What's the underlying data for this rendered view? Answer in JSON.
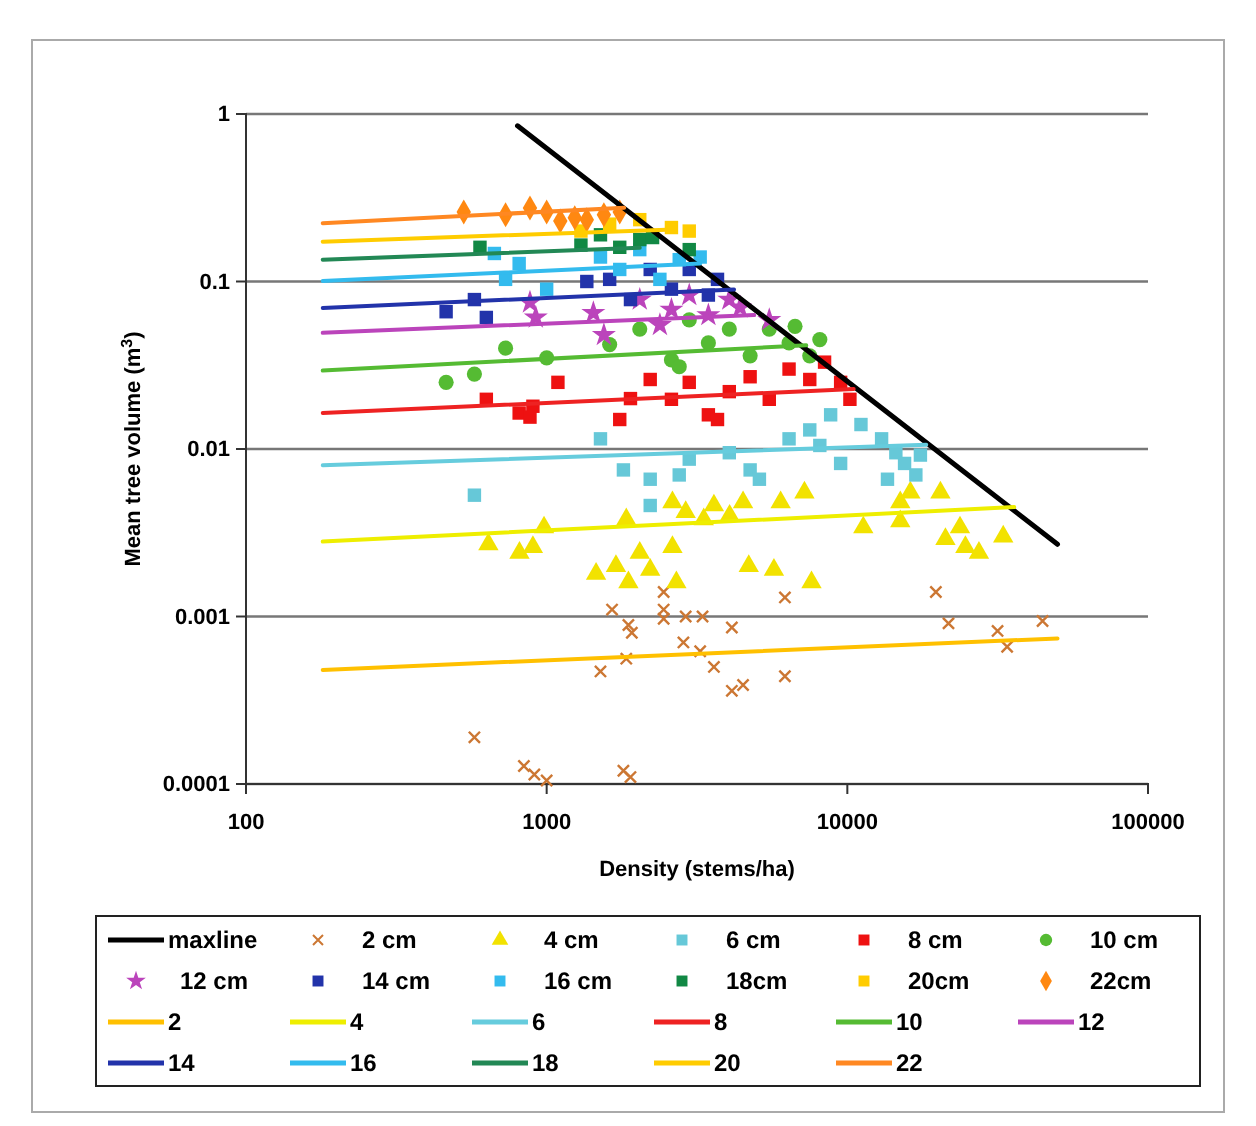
{
  "chart_data": {
    "type": "scatter",
    "xlabel": "Density (stems/ha)",
    "ylabel": "Mean tree volume (m$^{3}$)",
    "log": "xy",
    "xlim": [
      100,
      100000
    ],
    "xticks": [
      100,
      1000,
      10000,
      100000
    ],
    "ylim": [
      0.0001,
      1
    ],
    "yticks": [
      0.0001,
      0.001,
      0.01,
      0.1,
      1
    ],
    "grid": "y",
    "legend": "bottom",
    "series": [
      {
        "name": "maxline",
        "type": "line",
        "color": "#000000",
        "x": [
          800,
          50000
        ],
        "values": [
          0.85,
          0.0027
        ]
      },
      {
        "name": "2 cm",
        "marker": "cross",
        "color": "#cc7733",
        "x": [
          575,
          840,
          910,
          1000,
          1800,
          1900,
          1510,
          1840,
          1650,
          1870,
          1920,
          2450,
          2450,
          2450,
          2900,
          3300,
          2850,
          3240,
          3600,
          4130,
          4130,
          4500,
          6200,
          6200,
          19700,
          21700,
          31600,
          34000,
          44600
        ],
        "values": [
          0.00019,
          0.000128,
          0.000114,
          0.000105,
          0.00012,
          0.00011,
          0.00047,
          0.00056,
          0.0011,
          0.00089,
          0.0008,
          0.0014,
          0.0011,
          0.00097,
          0.001,
          0.001,
          0.0007,
          0.00062,
          0.0005,
          0.00086,
          0.00036,
          0.00039,
          0.0013,
          0.00044,
          0.0014,
          0.00091,
          0.00082,
          0.00066,
          0.00094
        ]
      },
      {
        "name": "4 cm",
        "marker": "triangle",
        "color": "#f2e200",
        "x": [
          640,
          812,
          900,
          980,
          1460,
          1700,
          1840,
          1870,
          2040,
          2210,
          2620,
          2620,
          2700,
          2900,
          3330,
          3600,
          4060,
          4500,
          4700,
          5700,
          6000,
          7200,
          7600,
          11300,
          15000,
          15000,
          16200,
          20400,
          21200,
          23700,
          24700,
          27400,
          33000
        ],
        "values": [
          0.0027,
          0.0024,
          0.0026,
          0.0034,
          0.0018,
          0.002,
          0.0038,
          0.0016,
          0.0024,
          0.0019,
          0.0048,
          0.0026,
          0.0016,
          0.0042,
          0.0038,
          0.0046,
          0.004,
          0.0048,
          0.002,
          0.0019,
          0.0048,
          0.0055,
          0.0016,
          0.0034,
          0.0048,
          0.0037,
          0.0055,
          0.0055,
          0.0029,
          0.0034,
          0.0026,
          0.0024,
          0.003
        ]
      },
      {
        "name": "6 cm",
        "marker": "square",
        "color": "#66c8d8",
        "x": [
          575,
          2210,
          1510,
          1800,
          2210,
          2760,
          2980,
          4050,
          4750,
          5100,
          6400,
          7500,
          8800,
          11100,
          13000,
          14500,
          15500,
          16900,
          17500,
          13600,
          9500,
          8100
        ],
        "values": [
          0.0053,
          0.0046,
          0.0115,
          0.0075,
          0.0066,
          0.007,
          0.0087,
          0.0095,
          0.0075,
          0.0066,
          0.0115,
          0.013,
          0.016,
          0.014,
          0.0115,
          0.0095,
          0.0082,
          0.007,
          0.0092,
          0.0066,
          0.0082,
          0.0105
        ]
      },
      {
        "name": "8 cm",
        "marker": "square",
        "color": "#ee1111",
        "x": [
          630,
          810,
          900,
          1090,
          880,
          1750,
          1900,
          2210,
          2600,
          2980,
          3450,
          4050,
          4750,
          5500,
          6400,
          7500,
          8400,
          9500,
          10200,
          3700
        ],
        "values": [
          0.0198,
          0.0164,
          0.018,
          0.025,
          0.0155,
          0.015,
          0.02,
          0.026,
          0.0198,
          0.025,
          0.016,
          0.022,
          0.027,
          0.0198,
          0.03,
          0.026,
          0.033,
          0.025,
          0.0198,
          0.015
        ]
      },
      {
        "name": "10 cm",
        "marker": "circle",
        "color": "#55bb33",
        "x": [
          463,
          575,
          730,
          1000,
          1620,
          2040,
          2600,
          2980,
          3450,
          4050,
          4750,
          5500,
          6400,
          6700,
          7500,
          8100,
          2760
        ],
        "values": [
          0.025,
          0.028,
          0.04,
          0.035,
          0.042,
          0.052,
          0.034,
          0.059,
          0.043,
          0.052,
          0.036,
          0.052,
          0.043,
          0.054,
          0.036,
          0.045,
          0.031
        ]
      },
      {
        "name": "12 cm",
        "marker": "star",
        "color": "#bb44bb",
        "x": [
          880,
          920,
          1430,
          1550,
          2040,
          2600,
          2980,
          3450,
          4050,
          4400,
          5500,
          2380
        ],
        "values": [
          0.075,
          0.061,
          0.065,
          0.048,
          0.078,
          0.068,
          0.083,
          0.063,
          0.078,
          0.07,
          0.059,
          0.055
        ]
      },
      {
        "name": "14 cm",
        "marker": "square",
        "color": "#2233aa",
        "x": [
          463,
          575,
          630,
          1360,
          1620,
          1900,
          2210,
          2600,
          2980,
          3450,
          3700
        ],
        "values": [
          0.066,
          0.078,
          0.061,
          0.1,
          0.103,
          0.078,
          0.118,
          0.09,
          0.118,
          0.083,
          0.103
        ]
      },
      {
        "name": "16 cm",
        "marker": "square",
        "color": "#33bbee",
        "x": [
          670,
          810,
          730,
          1000,
          1510,
          1750,
          2040,
          2380,
          2760,
          3240
        ],
        "values": [
          0.147,
          0.128,
          0.103,
          0.09,
          0.14,
          0.118,
          0.155,
          0.103,
          0.135,
          0.14
        ]
      },
      {
        "name": "18cm",
        "marker": "square",
        "color": "#118844",
        "x": [
          600,
          1300,
          1510,
          1750,
          2040,
          2250,
          2980
        ],
        "values": [
          0.16,
          0.165,
          0.19,
          0.16,
          0.178,
          0.183,
          0.155
        ]
      },
      {
        "name": "20cm",
        "marker": "square",
        "color": "#ffcc00",
        "x": [
          1300,
          1620,
          2040,
          2600,
          2980
        ],
        "values": [
          0.2,
          0.22,
          0.234,
          0.21,
          0.2
        ]
      },
      {
        "name": "22cm",
        "marker": "diamond",
        "color": "#ff8811",
        "x": [
          530,
          730,
          880,
          1000,
          1110,
          1240,
          1360,
          1550,
          1750
        ],
        "values": [
          0.26,
          0.25,
          0.275,
          0.26,
          0.23,
          0.24,
          0.234,
          0.25,
          0.26
        ]
      },
      {
        "name": "2",
        "type": "line",
        "color": "#ffc000",
        "x": [
          180,
          50000
        ],
        "values": [
          0.00048,
          0.00074
        ]
      },
      {
        "name": "4",
        "type": "line",
        "color": "#eeee00",
        "x": [
          180,
          35900
        ],
        "values": [
          0.0028,
          0.0045
        ]
      },
      {
        "name": "6",
        "type": "line",
        "color": "#66ccdd",
        "x": [
          180,
          18300
        ],
        "values": [
          0.008,
          0.0106
        ]
      },
      {
        "name": "8",
        "type": "line",
        "color": "#ee2222",
        "x": [
          180,
          10500
        ],
        "values": [
          0.0164,
          0.0228
        ]
      },
      {
        "name": "10",
        "type": "line",
        "color": "#55bb33",
        "x": [
          180,
          7300
        ],
        "values": [
          0.0294,
          0.0416
        ]
      },
      {
        "name": "12",
        "type": "line",
        "color": "#bb44bb",
        "x": [
          180,
          4900
        ],
        "values": [
          0.0494,
          0.063
        ]
      },
      {
        "name": "14",
        "type": "line",
        "color": "#2233aa",
        "x": [
          180,
          4200
        ],
        "values": [
          0.0695,
          0.0896
        ]
      },
      {
        "name": "16",
        "type": "line",
        "color": "#33bbee",
        "x": [
          180,
          3240
        ],
        "values": [
          0.1007,
          0.128
        ]
      },
      {
        "name": "18",
        "type": "line",
        "color": "#228855",
        "x": [
          180,
          2040
        ],
        "values": [
          0.135,
          0.159
        ]
      },
      {
        "name": "20",
        "type": "line",
        "color": "#ffcc00",
        "x": [
          180,
          2500
        ],
        "values": [
          0.173,
          0.204
        ]
      },
      {
        "name": "22",
        "type": "line",
        "color": "#ff8822",
        "x": [
          180,
          1810
        ],
        "values": [
          0.223,
          0.276
        ]
      }
    ]
  }
}
